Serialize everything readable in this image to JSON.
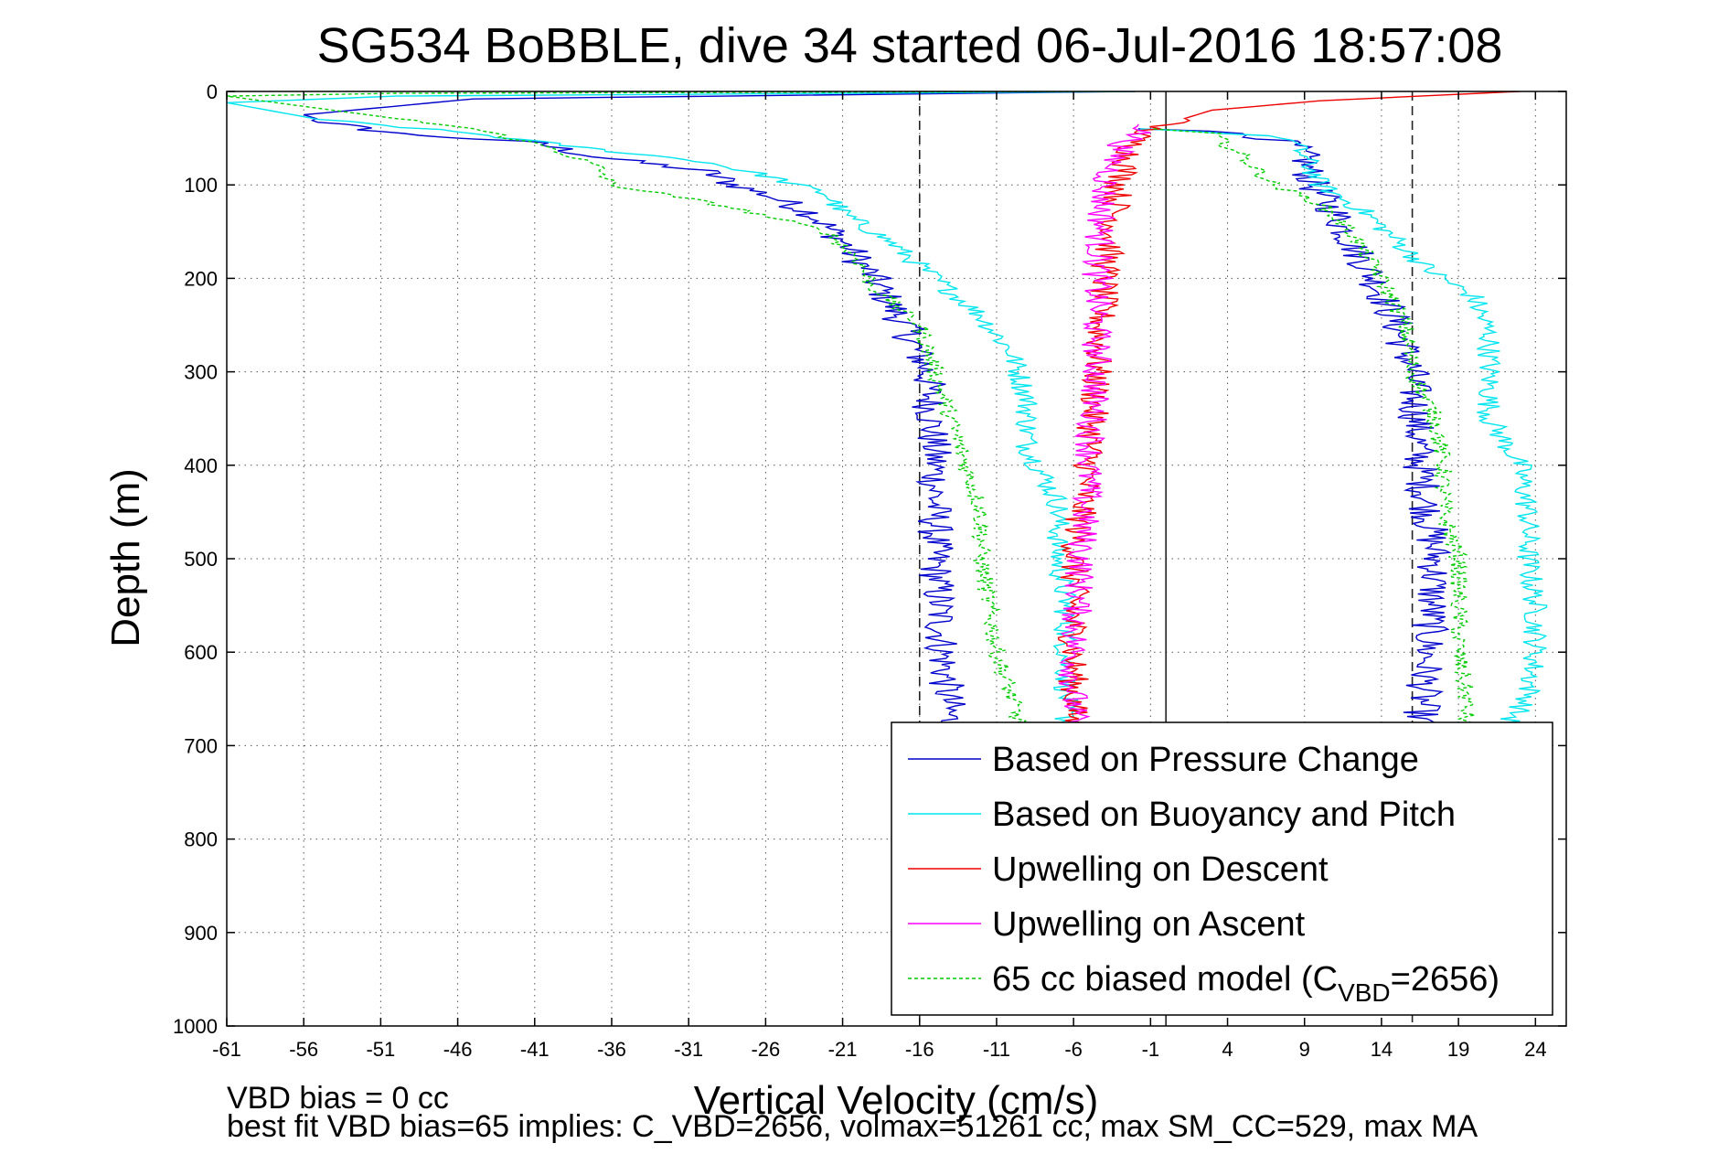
{
  "chart_data": {
    "type": "line",
    "title": "SG534 BoBBLE, dive 34 started 06-Jul-2016 18:57:08",
    "xlabel": "Vertical Velocity (cm/s)",
    "ylabel": "Depth (m)",
    "xlim": [
      -61,
      26
    ],
    "ylim": [
      1000,
      0
    ],
    "y_reversed": true,
    "grid": true,
    "legend_position": "bottom-right",
    "x_ticks": [
      -61,
      -56,
      -51,
      -46,
      -41,
      -36,
      -31,
      -26,
      -21,
      -16,
      -11,
      -6,
      -1,
      4,
      9,
      14,
      19,
      24
    ],
    "y_ticks": [
      0,
      100,
      200,
      300,
      400,
      500,
      600,
      700,
      800,
      900,
      1000
    ],
    "reference_lines": [
      {
        "x": -16,
        "style": "dashed"
      },
      {
        "x": 16,
        "style": "dashed"
      },
      {
        "x": 0,
        "style": "solid"
      }
    ],
    "legend": [
      {
        "label": "Based on Pressure Change",
        "color": "#0000cc",
        "style": "solid"
      },
      {
        "label": "Based on Buoyancy and Pitch",
        "color": "#00e5ee",
        "style": "solid"
      },
      {
        "label": "Upwelling on Descent",
        "color": "#ee0000",
        "style": "solid"
      },
      {
        "label": "Upwelling on Ascent",
        "color": "#ff00ff",
        "style": "solid"
      },
      {
        "label_main": "65 cc biased model (C",
        "label_sub": "VBD",
        "label_end": "=2656)",
        "color": "#00cc00",
        "style": "dashed"
      }
    ],
    "series": [
      {
        "color": "#0000cc",
        "style": "solid",
        "noise": 1.2,
        "points": [
          [
            -2,
            0
          ],
          [
            -45,
            8
          ],
          [
            -56,
            25
          ],
          [
            -54,
            35
          ],
          [
            -50,
            45
          ],
          [
            -41,
            55
          ],
          [
            -37,
            70
          ],
          [
            -30,
            85
          ],
          [
            -28,
            100
          ],
          [
            -26,
            110
          ],
          [
            -23,
            130
          ],
          [
            -21,
            160
          ],
          [
            -19,
            200
          ],
          [
            -17,
            250
          ],
          [
            -15.5,
            300
          ],
          [
            -15,
            400
          ],
          [
            -15,
            500
          ],
          [
            -14.5,
            600
          ],
          [
            -14,
            680
          ]
        ]
      },
      {
        "color": "#0000cc",
        "style": "solid",
        "noise": 1.2,
        "points": [
          [
            -1,
            40
          ],
          [
            5,
            45
          ],
          [
            8,
            55
          ],
          [
            9,
            70
          ],
          [
            9.5,
            100
          ],
          [
            11,
            130
          ],
          [
            12,
            160
          ],
          [
            13.5,
            200
          ],
          [
            15,
            250
          ],
          [
            16,
            300
          ],
          [
            16.5,
            400
          ],
          [
            17.5,
            500
          ],
          [
            17,
            600
          ],
          [
            16.5,
            680
          ]
        ]
      },
      {
        "color": "#00e5ee",
        "style": "solid",
        "noise": 0.8,
        "points": [
          [
            -2,
            0
          ],
          [
            -50,
            5
          ],
          [
            -61,
            12
          ],
          [
            -55,
            30
          ],
          [
            -45,
            45
          ],
          [
            -38,
            60
          ],
          [
            -30,
            75
          ],
          [
            -26,
            90
          ],
          [
            -22,
            110
          ],
          [
            -21,
            130
          ],
          [
            -18,
            160
          ],
          [
            -15,
            200
          ],
          [
            -12,
            240
          ],
          [
            -10,
            280
          ],
          [
            -9,
            330
          ],
          [
            -9,
            380
          ],
          [
            -7,
            440
          ],
          [
            -7,
            500
          ],
          [
            -6.5,
            550
          ],
          [
            -6.5,
            600
          ],
          [
            -6.5,
            680
          ]
        ]
      },
      {
        "color": "#00e5ee",
        "style": "solid",
        "noise": 0.8,
        "points": [
          [
            -1,
            40
          ],
          [
            4,
            45
          ],
          [
            8,
            50
          ],
          [
            9,
            70
          ],
          [
            10,
            100
          ],
          [
            13,
            130
          ],
          [
            15,
            160
          ],
          [
            17,
            190
          ],
          [
            20,
            220
          ],
          [
            21,
            260
          ],
          [
            21,
            300
          ],
          [
            21,
            350
          ],
          [
            23,
            400
          ],
          [
            23.5,
            450
          ],
          [
            23.5,
            500
          ],
          [
            24,
            550
          ],
          [
            24,
            600
          ],
          [
            23.5,
            650
          ],
          [
            22,
            680
          ]
        ]
      },
      {
        "color": "#ee0000",
        "style": "solid",
        "noise": 1.0,
        "points": [
          [
            23,
            0
          ],
          [
            10,
            10
          ],
          [
            3,
            20
          ],
          [
            -1,
            40
          ],
          [
            -2,
            50
          ],
          [
            -3,
            100
          ],
          [
            -4,
            200
          ],
          [
            -4.5,
            300
          ],
          [
            -5,
            400
          ],
          [
            -6,
            500
          ],
          [
            -6,
            600
          ],
          [
            -6,
            680
          ]
        ]
      },
      {
        "color": "#ff00ff",
        "style": "solid",
        "noise": 1.0,
        "points": [
          [
            -1,
            35
          ],
          [
            -3,
            60
          ],
          [
            -4,
            100
          ],
          [
            -4.5,
            200
          ],
          [
            -4.5,
            300
          ],
          [
            -5,
            400
          ],
          [
            -5.5,
            500
          ],
          [
            -6,
            600
          ],
          [
            -6,
            680
          ]
        ]
      },
      {
        "color": "#00cc00",
        "style": "dashed",
        "noise": 0.6,
        "points": [
          [
            -3,
            0
          ],
          [
            -50,
            2
          ],
          [
            -61,
            5
          ],
          [
            -45,
            40
          ],
          [
            -40,
            60
          ],
          [
            -37,
            80
          ],
          [
            -36,
            100
          ],
          [
            -31,
            115
          ],
          [
            -28,
            125
          ],
          [
            -22,
            150
          ],
          [
            -20,
            180
          ],
          [
            -19,
            210
          ],
          [
            -16,
            250
          ],
          [
            -15,
            300
          ],
          [
            -14,
            350
          ],
          [
            -13,
            400
          ],
          [
            -12,
            450
          ],
          [
            -12,
            500
          ],
          [
            -11.5,
            550
          ],
          [
            -11,
            600
          ],
          [
            -10,
            650
          ],
          [
            -9.5,
            680
          ]
        ]
      },
      {
        "color": "#00cc00",
        "style": "dashed",
        "noise": 0.6,
        "points": [
          [
            -1,
            40
          ],
          [
            3,
            45
          ],
          [
            5,
            70
          ],
          [
            7,
            100
          ],
          [
            10,
            120
          ],
          [
            12,
            150
          ],
          [
            14,
            200
          ],
          [
            15.5,
            250
          ],
          [
            16,
            300
          ],
          [
            17.5,
            350
          ],
          [
            18,
            400
          ],
          [
            18,
            450
          ],
          [
            19,
            500
          ],
          [
            19,
            550
          ],
          [
            19,
            600
          ],
          [
            19.5,
            650
          ],
          [
            19.5,
            680
          ]
        ]
      }
    ],
    "footnote_1": "VBD bias = 0 cc",
    "footnote_2": "best fit VBD bias=65 implies: C_VBD=2656, volmax=51261 cc, max SM_CC=529, max MA"
  }
}
